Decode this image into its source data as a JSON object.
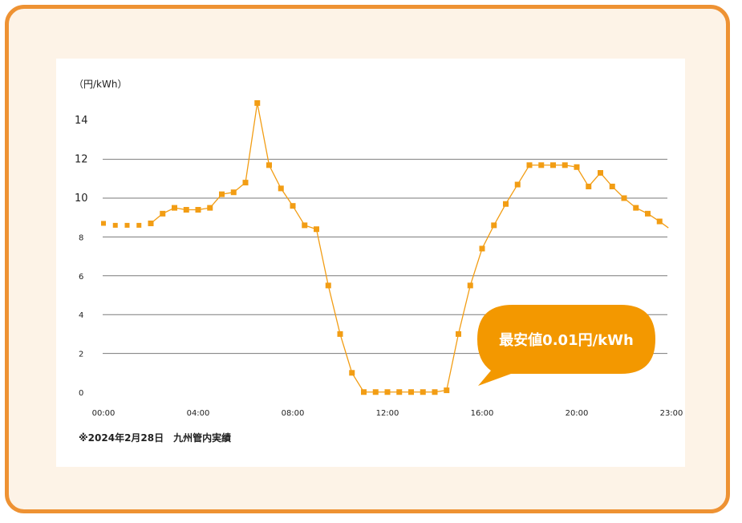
{
  "colors": {
    "frame": "#ee9233",
    "background": "#fdf3e7",
    "series": "#f29d14",
    "grid": "#7a7a7a",
    "callout": "#f39800"
  },
  "chart_data": {
    "type": "line",
    "title": "",
    "unit_label": "（円/kWh）",
    "xlabel": "",
    "ylabel": "",
    "ylim": [
      0,
      16
    ],
    "y_ticks": [
      {
        "value": 0,
        "label": "0"
      },
      {
        "value": 2,
        "label": "2"
      },
      {
        "value": 4,
        "label": "4"
      },
      {
        "value": 6,
        "label": "6"
      },
      {
        "value": 8,
        "label": "8"
      },
      {
        "value": 10,
        "label": "10"
      },
      {
        "value": 12,
        "label": "12"
      },
      {
        "value": 14,
        "label": "14"
      }
    ],
    "gridlines_at": [
      2,
      4,
      6,
      8,
      10,
      12
    ],
    "x_ticks": [
      {
        "slot": 0,
        "label": "00:00"
      },
      {
        "slot": 8,
        "label": "04:00"
      },
      {
        "slot": 16,
        "label": "08:00"
      },
      {
        "slot": 24,
        "label": "12:00"
      },
      {
        "slot": 32,
        "label": "16:00"
      },
      {
        "slot": 40,
        "label": "20:00"
      },
      {
        "slot": 48,
        "label": "23:00"
      }
    ],
    "values": [
      8.7,
      8.6,
      8.6,
      8.6,
      8.7,
      9.2,
      9.5,
      9.4,
      9.4,
      9.5,
      10.2,
      10.3,
      10.8,
      14.9,
      11.7,
      10.5,
      9.6,
      8.6,
      8.4,
      5.5,
      3.0,
      1.0,
      0.01,
      0.01,
      0.01,
      0.01,
      0.01,
      0.01,
      0.01,
      0.1,
      3.0,
      5.5,
      7.4,
      8.6,
      9.7,
      10.7,
      11.7,
      11.7,
      11.7,
      11.7,
      11.6,
      10.6,
      11.3,
      10.6,
      10.0,
      9.5,
      9.2,
      8.8
    ],
    "annotation": "最安値0.01円/kWh",
    "note": "※2024年2月28日　九州管内実績"
  }
}
